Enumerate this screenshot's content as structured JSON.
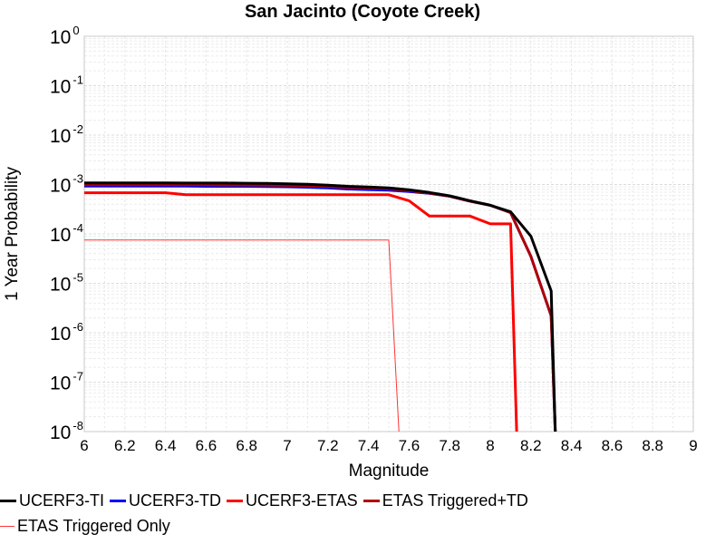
{
  "chart_data": {
    "type": "line",
    "title": "San Jacinto (Coyote Creek)",
    "xlabel": "Magnitude",
    "ylabel": "1 Year Probability",
    "xlim": [
      6,
      9
    ],
    "ylim": [
      1e-08,
      1
    ],
    "yscale": "log",
    "grid": true,
    "legend_position": "bottom",
    "x_ticks": [
      "6",
      "6.2",
      "6.4",
      "6.6",
      "6.8",
      "7",
      "7.2",
      "7.4",
      "7.6",
      "7.8",
      "8",
      "8.2",
      "8.4",
      "8.6",
      "8.8",
      "9"
    ],
    "y_ticks": [
      {
        "base": "10",
        "exp": "0"
      },
      {
        "base": "10",
        "exp": "-1"
      },
      {
        "base": "10",
        "exp": "-2"
      },
      {
        "base": "10",
        "exp": "-3"
      },
      {
        "base": "10",
        "exp": "-4"
      },
      {
        "base": "10",
        "exp": "-5"
      },
      {
        "base": "10",
        "exp": "-6"
      },
      {
        "base": "10",
        "exp": "-7"
      },
      {
        "base": "10",
        "exp": "-8"
      }
    ],
    "series": [
      {
        "name": "UCERF3-TI",
        "color": "#000000",
        "width": 3,
        "x": [
          6.0,
          6.1,
          6.2,
          6.3,
          6.4,
          6.5,
          6.6,
          6.7,
          6.8,
          6.9,
          7.0,
          7.1,
          7.2,
          7.3,
          7.4,
          7.5,
          7.6,
          7.7,
          7.8,
          7.9,
          8.0,
          8.1,
          8.2,
          8.3,
          8.32
        ],
        "y": [
          0.00108,
          0.00108,
          0.00108,
          0.00108,
          0.00108,
          0.00107,
          0.00107,
          0.00107,
          0.00106,
          0.00105,
          0.00103,
          0.00101,
          0.00097,
          0.00092,
          0.00089,
          0.00085,
          0.00078,
          0.00069,
          0.00059,
          0.00047,
          0.00038,
          0.00028,
          9e-05,
          7e-06,
          1e-08
        ]
      },
      {
        "name": "UCERF3-TD",
        "color": "#0000ff",
        "width": 3,
        "x": [
          6.0,
          6.1,
          6.2,
          6.3,
          6.4,
          6.5,
          6.6,
          6.7,
          6.8,
          6.9,
          7.0,
          7.1,
          7.2,
          7.3,
          7.4,
          7.5,
          7.6,
          7.7,
          7.8,
          7.9,
          8.0,
          8.1,
          8.2,
          8.3,
          8.32
        ],
        "y": [
          0.00093,
          0.00093,
          0.00093,
          0.00093,
          0.00093,
          0.00093,
          0.00092,
          0.00092,
          0.00092,
          0.00091,
          0.0009,
          0.00088,
          0.00085,
          0.00081,
          0.00079,
          0.00077,
          0.00072,
          0.00066,
          0.00058,
          0.00046,
          0.00038,
          0.00027,
          3.5e-05,
          2.2e-06,
          1e-08
        ]
      },
      {
        "name": "UCERF3-ETAS",
        "color": "#ff0000",
        "width": 3,
        "x": [
          6.0,
          6.1,
          6.2,
          6.3,
          6.4,
          6.5,
          6.6,
          6.7,
          6.8,
          6.9,
          7.0,
          7.1,
          7.2,
          7.3,
          7.4,
          7.5,
          7.6,
          7.7,
          7.8,
          7.9,
          8.0,
          8.1,
          8.13
        ],
        "y": [
          0.00068,
          0.00068,
          0.00068,
          0.00068,
          0.00068,
          0.00062,
          0.00062,
          0.00062,
          0.00062,
          0.00062,
          0.00062,
          0.00062,
          0.00062,
          0.00062,
          0.00062,
          0.00062,
          0.00047,
          0.00023,
          0.00023,
          0.00023,
          0.00016,
          0.00016,
          1e-08
        ]
      },
      {
        "name": "ETAS Triggered+TD",
        "color": "#b00000",
        "width": 3,
        "x": [
          6.0,
          6.1,
          6.2,
          6.3,
          6.4,
          6.5,
          6.6,
          6.7,
          6.8,
          6.9,
          7.0,
          7.1,
          7.2,
          7.3,
          7.4,
          7.5,
          7.6,
          7.7,
          7.8,
          7.9,
          8.0,
          8.1,
          8.2,
          8.3,
          8.32
        ],
        "y": [
          0.00099,
          0.00099,
          0.00099,
          0.00099,
          0.00099,
          0.00099,
          0.00099,
          0.00098,
          0.00098,
          0.00097,
          0.00096,
          0.00094,
          0.00091,
          0.00087,
          0.00085,
          0.00082,
          0.00075,
          0.00067,
          0.00058,
          0.00046,
          0.00038,
          0.00027,
          3.5e-05,
          2.2e-06,
          1e-08
        ]
      },
      {
        "name": "ETAS Triggered Only",
        "color": "#ff3333",
        "width": 1,
        "x": [
          6.0,
          7.5,
          7.55
        ],
        "y": [
          7.5e-05,
          7.5e-05,
          1e-08
        ]
      }
    ]
  }
}
